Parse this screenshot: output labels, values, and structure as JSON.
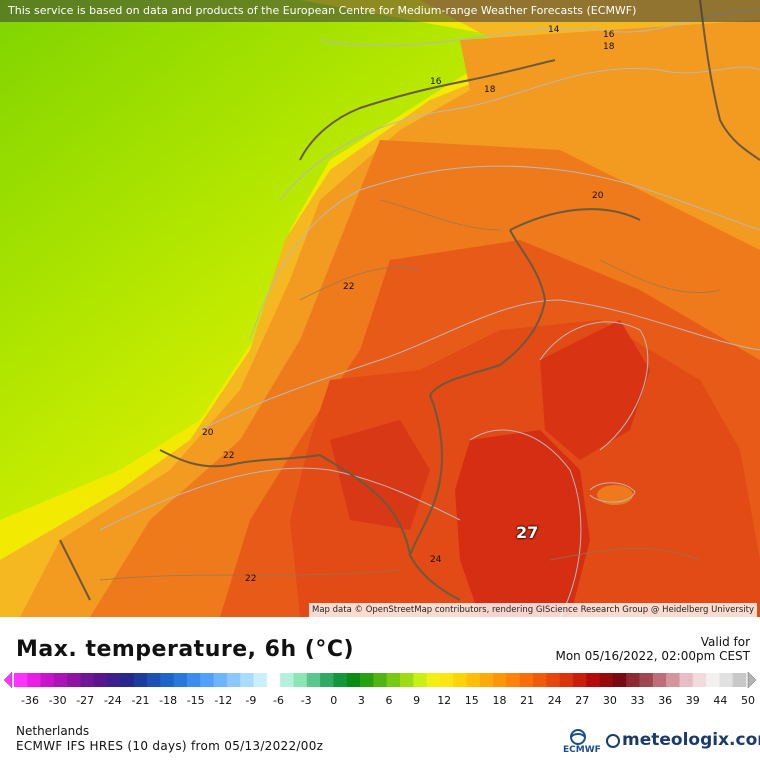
{
  "map": {
    "banner": "This service is based on data and products of the European Centre for Medium-range Weather Forecasts (ECMWF)",
    "attribution": "Map data © OpenStreetMap contributors, rendering GIScience Research Group @ Heidelberg University",
    "contour_labels": [
      "14",
      "16",
      "18",
      "16",
      "18",
      "20",
      "22",
      "20",
      "22",
      "22",
      "24"
    ],
    "max_label": "27"
  },
  "header": {
    "title": "Max. temperature, 6h (°C)",
    "valid_label": "Valid for",
    "valid_date": "Mon 05/16/2022, 02:00pm CEST"
  },
  "scale": {
    "ticks": [
      "-36",
      "-30",
      "-27",
      "-24",
      "-21",
      "-18",
      "-15",
      "-12",
      "-9",
      "-6",
      "-3",
      "0",
      "3",
      "6",
      "9",
      "12",
      "15",
      "18",
      "21",
      "24",
      "27",
      "30",
      "33",
      "36",
      "39",
      "44",
      "50"
    ]
  },
  "footer": {
    "region": "Netherlands",
    "model": "ECMWF IFS HRES (10 days) from 05/13/2022/00z",
    "ecmwf": "ECMWF",
    "brand": "meteologix.com"
  },
  "colors": {
    "sea_green": "#8fdc00",
    "sea_yellow": "#e0f000",
    "land_orange": "#f5a020",
    "land_deep_orange": "#ee6a1a",
    "land_red": "#e0401a",
    "land_dark_red": "#d42a14"
  }
}
